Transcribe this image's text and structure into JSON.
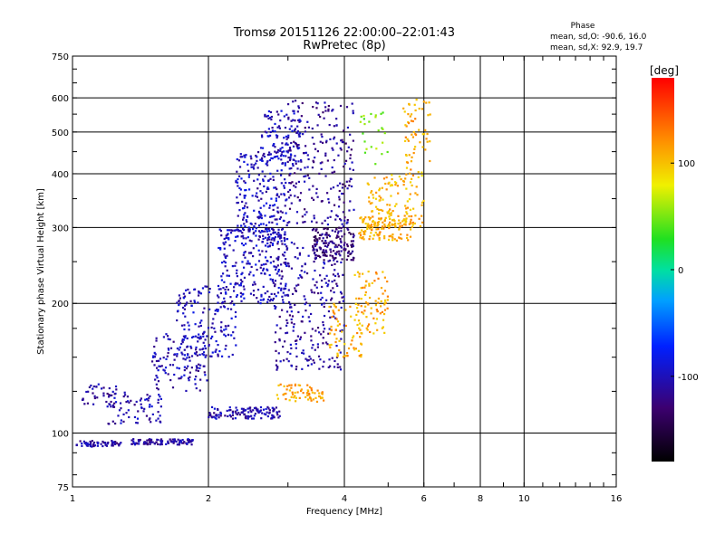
{
  "chart_data": {
    "type": "scatter",
    "title": "Tromsø 20151126 22:00:00–22:01:43",
    "subtitle": "RwPretec (8p)",
    "xlabel": "Frequency [MHz]",
    "ylabel": "Stationary phase Virtual Height [km]",
    "x_scale": "log",
    "y_scale": "log",
    "xlim": [
      1,
      16
    ],
    "ylim": [
      75,
      750
    ],
    "x_ticks": [
      1,
      2,
      4,
      6,
      8,
      10,
      16
    ],
    "x_tick_labels": [
      "1",
      "2",
      "4",
      "6",
      "8",
      "10",
      "16"
    ],
    "y_ticks": [
      75,
      100,
      200,
      300,
      400,
      500,
      600,
      750
    ],
    "y_tick_labels": [
      "75",
      "100",
      "200",
      "300",
      "400",
      "500",
      "600",
      "750"
    ],
    "grid": true,
    "stats": {
      "title": "Phase",
      "line_o": "mean, sd,O: -90.6, 16.0",
      "line_x": "mean, sd,X:  92.9, 19.7"
    },
    "colorbar": {
      "label": "[deg]",
      "range": [
        -180,
        180
      ],
      "ticks": [
        100,
        0,
        -100
      ],
      "tick_labels": [
        "100",
        "0",
        "-100"
      ]
    },
    "series": [
      {
        "clusters": [
          {
            "f": [
              1.02,
              1.28
            ],
            "h": [
              93,
              96
            ],
            "phase": -110,
            "n": 60
          },
          {
            "f": [
              1.35,
              1.85
            ],
            "h": [
              94,
              97
            ],
            "phase": -110,
            "n": 100
          },
          {
            "f": [
              1.05,
              1.25
            ],
            "h": [
              115,
              130
            ],
            "phase": -110,
            "n": 40
          },
          {
            "f": [
              1.2,
              1.6
            ],
            "h": [
              105,
              125
            ],
            "phase": -105,
            "n": 70
          },
          {
            "f": [
              1.5,
              2.0
            ],
            "h": [
              125,
              170
            ],
            "phase": -105,
            "n": 120
          },
          {
            "f": [
              1.7,
              2.3
            ],
            "h": [
              150,
              220
            ],
            "phase": -100,
            "n": 160
          },
          {
            "f": [
              2.0,
              2.9
            ],
            "h": [
              108,
              115
            ],
            "phase": -105,
            "n": 120
          },
          {
            "f": [
              2.1,
              3.0
            ],
            "h": [
              200,
              300
            ],
            "phase": -100,
            "n": 260
          },
          {
            "f": [
              2.3,
              3.0
            ],
            "h": [
              280,
              450
            ],
            "phase": -100,
            "n": 220
          },
          {
            "f": [
              2.6,
              3.2
            ],
            "h": [
              420,
              560
            ],
            "phase": -100,
            "n": 110
          },
          {
            "f": [
              2.8,
              4.0
            ],
            "h": [
              140,
              280
            ],
            "phase": -110,
            "n": 260
          },
          {
            "f": [
              3.0,
              4.2
            ],
            "h": [
              300,
              600
            ],
            "phase": -115,
            "n": 230
          },
          {
            "f": [
              3.4,
              4.2
            ],
            "h": [
              250,
              300
            ],
            "phase": -125,
            "n": 150
          },
          {
            "f": [
              2.8,
              3.4
            ],
            "h": [
              118,
              130
            ],
            "phase": 110,
            "n": 40
          },
          {
            "f": [
              3.3,
              3.6
            ],
            "h": [
              118,
              126
            ],
            "phase": 110,
            "n": 25
          },
          {
            "f": [
              3.7,
              4.4
            ],
            "h": [
              150,
              200
            ],
            "phase": 110,
            "n": 70
          },
          {
            "f": [
              4.2,
              5.0
            ],
            "h": [
              170,
              240
            ],
            "phase": 110,
            "n": 80
          },
          {
            "f": [
              4.3,
              5.7
            ],
            "h": [
              280,
              320
            ],
            "phase": 110,
            "n": 120
          },
          {
            "f": [
              4.5,
              6.0
            ],
            "h": [
              300,
              400
            ],
            "phase": 105,
            "n": 120
          },
          {
            "f": [
              5.4,
              6.2
            ],
            "h": [
              400,
              600
            ],
            "phase": 110,
            "n": 60
          },
          {
            "f": [
              4.3,
              5.0
            ],
            "h": [
              420,
              560
            ],
            "phase": 50,
            "n": 25
          }
        ]
      }
    ]
  }
}
